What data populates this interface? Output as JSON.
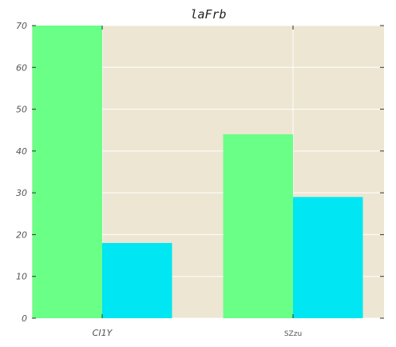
{
  "chart_data": {
    "type": "bar",
    "title": "laFrb",
    "categories": [
      "CI1Y",
      "SZzu"
    ],
    "series": [
      {
        "values": [
          70,
          44
        ],
        "color": "#6aff86"
      },
      {
        "values": [
          18,
          29
        ],
        "color": "#00e6f2"
      }
    ],
    "ylim": [
      0,
      70
    ],
    "yticks": [
      "0",
      "10",
      "20",
      "30",
      "40",
      "50",
      "60",
      "70"
    ],
    "grid": true,
    "background": "#ede6d3",
    "grid_color": "#ffffff"
  }
}
